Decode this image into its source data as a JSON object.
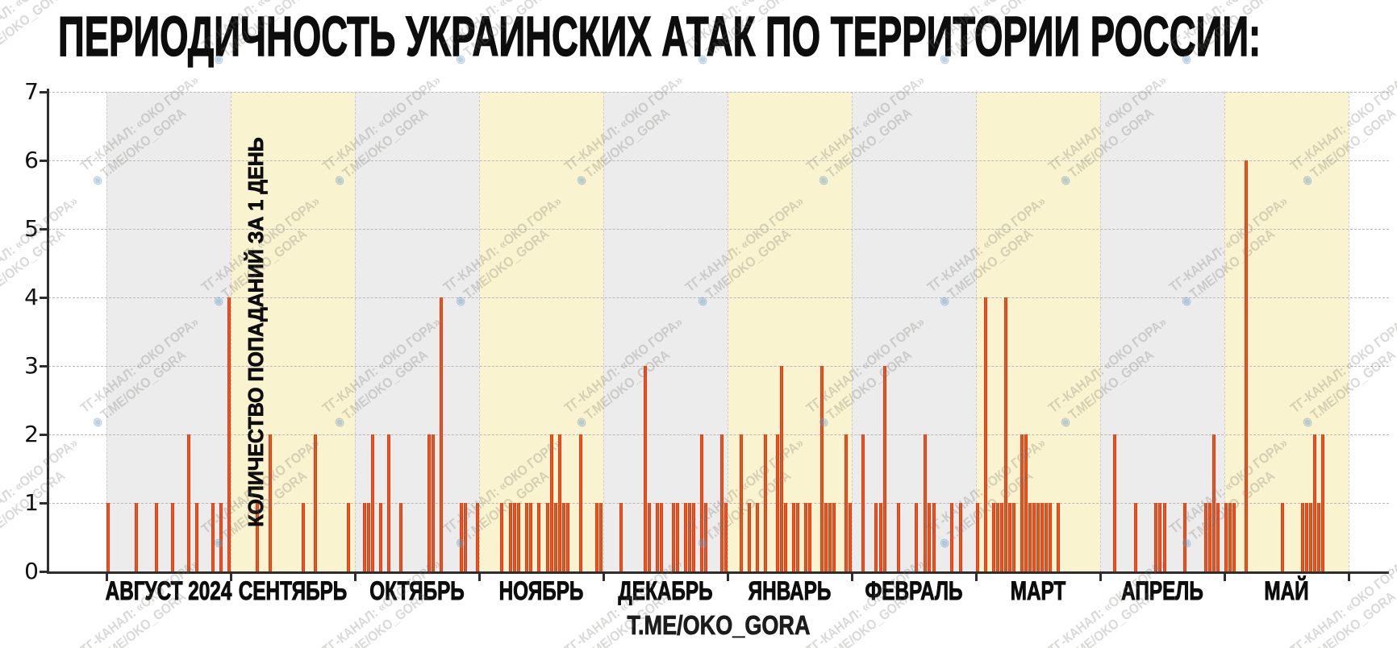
{
  "title": "ПЕРИОДИЧНОСТЬ УКРАИНСКИХ АТАК ПО ТЕРРИТОРИИ РОССИИ:",
  "footer": "T.ME/OKO_GORA",
  "watermark": {
    "line1": "ТГ-КАНАЛ: «ОКО ГОРА»",
    "line2": "T.ME/OKO_GORA",
    "eye_icon": "◉"
  },
  "colors": {
    "bar": "#ee5522",
    "bar_edge": "#c93511",
    "band_gray": "#ececec",
    "band_yellow": "#faf3cf",
    "grid": "#b8b8b8",
    "axis": "#2e2e2e",
    "text": "#0d0d0d"
  },
  "chart_data": {
    "type": "bar",
    "title": "ПЕРИОДИЧНОСТЬ УКРАИНСКИХ АТАК ПО ТЕРРИТОРИИ РОССИИ:",
    "xlabel": "",
    "ylabel": "КОЛИЧЕСТВО ПОПАДАНИЙ ЗА 1 ДЕНЬ",
    "ylim": [
      0,
      7
    ],
    "yticks": [
      0,
      1,
      2,
      3,
      4,
      5,
      6,
      7
    ],
    "grid": true,
    "legend": false,
    "bar_unit": "hits per single day, one bar = one day with strikes",
    "months": [
      {
        "label": "АВГУСТ 2024",
        "days": 31,
        "band": "gray",
        "bars": [
          [
            1,
            1
          ],
          [
            8,
            1
          ],
          [
            13,
            1
          ],
          [
            17,
            1
          ],
          [
            21,
            2
          ],
          [
            23,
            1
          ],
          [
            27,
            1
          ],
          [
            29,
            1
          ],
          [
            31,
            4
          ]
        ]
      },
      {
        "label": "СЕНТЯБРЬ",
        "days": 30,
        "band": "yellow",
        "bars": [
          [
            7,
            1
          ],
          [
            10,
            2
          ],
          [
            18,
            1
          ],
          [
            21,
            2
          ],
          [
            29,
            1
          ]
        ]
      },
      {
        "label": "ОКТЯБРЬ",
        "days": 31,
        "band": "gray",
        "bars": [
          [
            3,
            1
          ],
          [
            4,
            1
          ],
          [
            5,
            2
          ],
          [
            7,
            1
          ],
          [
            9,
            2
          ],
          [
            12,
            1
          ],
          [
            19,
            2
          ],
          [
            20,
            2
          ],
          [
            22,
            4
          ],
          [
            27,
            1
          ],
          [
            28,
            1
          ],
          [
            31,
            1
          ]
        ]
      },
      {
        "label": "НОЯБРЬ",
        "days": 30,
        "band": "yellow",
        "bars": [
          [
            6,
            1
          ],
          [
            8,
            1
          ],
          [
            9,
            1
          ],
          [
            10,
            1
          ],
          [
            12,
            1
          ],
          [
            13,
            1
          ],
          [
            15,
            1
          ],
          [
            17,
            1
          ],
          [
            18,
            2
          ],
          [
            19,
            1
          ],
          [
            20,
            2
          ],
          [
            21,
            1
          ],
          [
            22,
            1
          ],
          [
            25,
            2
          ],
          [
            29,
            1
          ],
          [
            30,
            1
          ]
        ]
      },
      {
        "label": "ДЕКАБРЬ",
        "days": 31,
        "band": "gray",
        "bars": [
          [
            5,
            1
          ],
          [
            11,
            3
          ],
          [
            12,
            1
          ],
          [
            14,
            1
          ],
          [
            15,
            1
          ],
          [
            18,
            1
          ],
          [
            19,
            1
          ],
          [
            21,
            1
          ],
          [
            22,
            1
          ],
          [
            23,
            1
          ],
          [
            25,
            2
          ],
          [
            26,
            1
          ],
          [
            30,
            2
          ],
          [
            31,
            1
          ]
        ]
      },
      {
        "label": "ЯНВАРЬ",
        "days": 31,
        "band": "yellow",
        "bars": [
          [
            4,
            2
          ],
          [
            6,
            1
          ],
          [
            8,
            1
          ],
          [
            10,
            2
          ],
          [
            13,
            2
          ],
          [
            14,
            3
          ],
          [
            15,
            1
          ],
          [
            17,
            1
          ],
          [
            18,
            1
          ],
          [
            20,
            1
          ],
          [
            21,
            1
          ],
          [
            24,
            3
          ],
          [
            25,
            1
          ],
          [
            26,
            1
          ],
          [
            27,
            1
          ],
          [
            30,
            2
          ],
          [
            31,
            1
          ]
        ]
      },
      {
        "label": "ФЕВРАЛЬ",
        "days": 28,
        "band": "gray",
        "bars": [
          [
            3,
            2
          ],
          [
            6,
            1
          ],
          [
            7,
            1
          ],
          [
            8,
            3
          ],
          [
            11,
            1
          ],
          [
            15,
            1
          ],
          [
            17,
            2
          ],
          [
            18,
            1
          ],
          [
            19,
            1
          ],
          [
            23,
            1
          ],
          [
            25,
            1
          ]
        ]
      },
      {
        "label": "МАРТ",
        "days": 31,
        "band": "yellow",
        "bars": [
          [
            1,
            1
          ],
          [
            3,
            4
          ],
          [
            5,
            1
          ],
          [
            6,
            1
          ],
          [
            7,
            1
          ],
          [
            8,
            4
          ],
          [
            9,
            1
          ],
          [
            10,
            1
          ],
          [
            12,
            2
          ],
          [
            13,
            2
          ],
          [
            14,
            1
          ],
          [
            15,
            1
          ],
          [
            16,
            1
          ],
          [
            17,
            1
          ],
          [
            18,
            1
          ],
          [
            19,
            1
          ],
          [
            21,
            1
          ]
        ]
      },
      {
        "label": "АПРЕЛЬ",
        "days": 30,
        "band": "gray",
        "bars": [
          [
            4,
            2
          ],
          [
            9,
            1
          ],
          [
            14,
            1
          ],
          [
            15,
            1
          ],
          [
            16,
            1
          ],
          [
            21,
            1
          ],
          [
            26,
            1
          ],
          [
            27,
            1
          ],
          [
            28,
            2
          ],
          [
            29,
            1
          ]
        ]
      },
      {
        "label": "МАЙ",
        "days": 31,
        "band": "yellow",
        "bars": [
          [
            1,
            1
          ],
          [
            2,
            1
          ],
          [
            3,
            1
          ],
          [
            6,
            6
          ],
          [
            15,
            1
          ],
          [
            20,
            1
          ],
          [
            21,
            1
          ],
          [
            22,
            1
          ],
          [
            23,
            2
          ],
          [
            24,
            1
          ],
          [
            25,
            2
          ]
        ]
      }
    ]
  }
}
